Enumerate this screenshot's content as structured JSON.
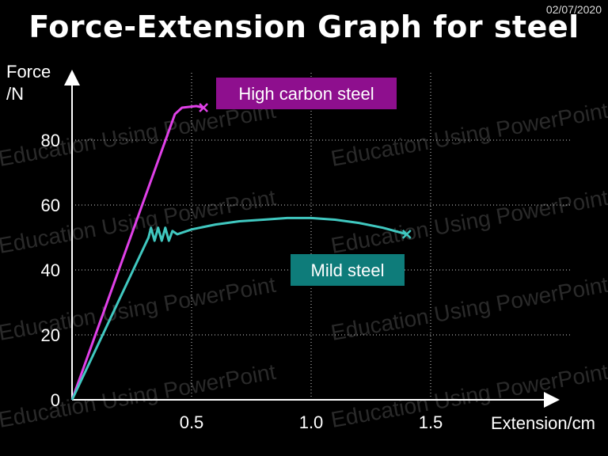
{
  "slide": {
    "title": "Force-Extension Graph for steel",
    "date": "02/07/2020",
    "watermark": "Education Using PowerPoint"
  },
  "chart_data": {
    "type": "line",
    "title": "Force-Extension Graph for steel",
    "xlabel": "Extension/cm",
    "ylabel": "Force /N",
    "xlim": [
      0,
      1.75
    ],
    "ylim": [
      0,
      100
    ],
    "xticks": [
      0.5,
      1.0,
      1.5
    ],
    "xtick_labels": [
      "0.5",
      "1.0",
      "1.5"
    ],
    "yticks": [
      0,
      20,
      40,
      60,
      80
    ],
    "ytick_labels": [
      "0",
      "20",
      "40",
      "60",
      "80"
    ],
    "grid": true,
    "series": [
      {
        "name": "High carbon steel",
        "color": "#e040e8",
        "label_bg": "#8e0f8e",
        "x": [
          0,
          0.43,
          0.46,
          0.52,
          0.55
        ],
        "y": [
          0,
          88,
          90,
          90.5,
          90
        ],
        "break_at": [
          0.55,
          90
        ]
      },
      {
        "name": "Mild steel",
        "color": "#40c8c0",
        "label_bg": "#0e7c7a",
        "x": [
          0,
          0.32,
          0.33,
          0.345,
          0.36,
          0.375,
          0.39,
          0.405,
          0.42,
          0.44,
          0.5,
          0.6,
          0.7,
          0.8,
          0.9,
          1.0,
          1.1,
          1.2,
          1.3,
          1.4
        ],
        "y": [
          0,
          50,
          53,
          49,
          53,
          49,
          53,
          49,
          52,
          51,
          52.5,
          54,
          55,
          55.5,
          56,
          56,
          55.5,
          54.5,
          53,
          51
        ],
        "break_at": [
          1.4,
          51
        ]
      }
    ]
  }
}
